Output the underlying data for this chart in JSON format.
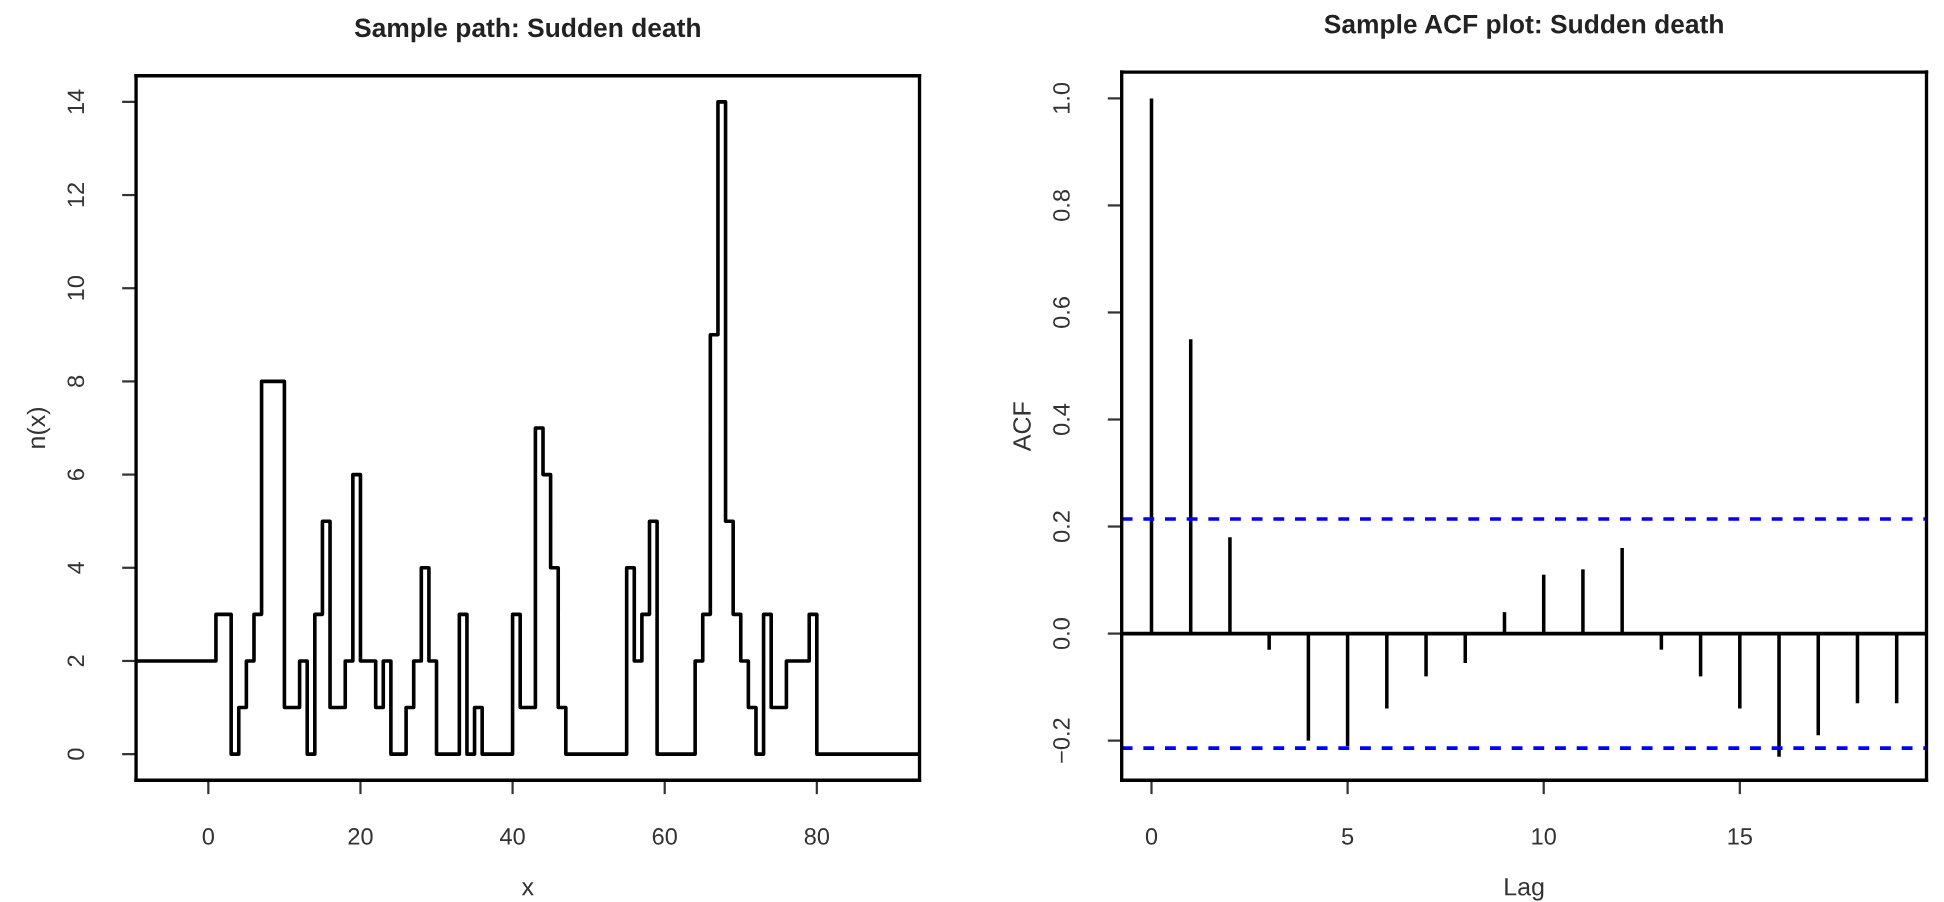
{
  "chart_data": [
    {
      "type": "step",
      "title": "Sample path: Sudden death",
      "xlabel": "x",
      "ylabel": "n(x)",
      "x": [
        -9.5,
        1,
        2,
        3,
        4,
        5,
        6,
        7,
        8,
        9,
        10,
        11,
        12,
        13,
        14,
        15,
        16,
        17,
        18,
        19,
        20,
        21,
        22,
        23,
        24,
        25,
        26,
        27,
        28,
        29,
        30,
        31,
        32,
        33,
        34,
        35,
        36,
        37,
        38,
        39,
        40,
        41,
        42,
        43,
        44,
        45,
        46,
        47,
        48,
        49,
        50,
        51,
        52,
        53,
        54,
        55,
        56,
        57,
        58,
        59,
        60,
        61,
        62,
        63,
        64,
        65,
        66,
        67,
        68,
        69,
        70,
        71,
        72,
        73,
        74,
        75,
        76,
        77,
        78,
        79,
        80,
        93.5
      ],
      "series": [
        {
          "color": "#000000",
          "values": [
            2,
            3,
            3,
            0,
            1,
            2,
            3,
            8,
            8,
            8,
            1,
            1,
            2,
            0,
            3,
            5,
            1,
            1,
            2,
            6,
            2,
            2,
            1,
            2,
            0,
            0,
            1,
            2,
            4,
            2,
            0,
            0,
            0,
            3,
            0,
            1,
            0,
            0,
            0,
            0,
            3,
            1,
            1,
            7,
            6,
            4,
            1,
            0,
            0,
            0,
            0,
            0,
            0,
            0,
            0,
            4,
            2,
            3,
            5,
            0,
            0,
            0,
            0,
            0,
            2,
            3,
            9,
            14,
            5,
            3,
            2,
            1,
            0,
            3,
            1,
            1,
            2,
            2,
            2,
            3,
            0,
            0
          ]
        }
      ],
      "xlim": [
        -9.5,
        93.5
      ],
      "ylim": [
        -0.56,
        14.56
      ],
      "xticks": [
        0,
        20,
        40,
        60,
        80
      ],
      "yticks": [
        0,
        2,
        4,
        6,
        8,
        10,
        12,
        14
      ],
      "grid": false,
      "marker": "none",
      "line_style": "solid"
    },
    {
      "type": "bar",
      "title": "Sample ACF plot: Sudden death",
      "xlabel": "Lag",
      "ylabel": "ACF",
      "x": [
        0,
        1,
        2,
        3,
        4,
        5,
        6,
        7,
        8,
        9,
        10,
        11,
        12,
        13,
        14,
        15,
        16,
        17,
        18,
        19
      ],
      "series": [
        {
          "color": "#000000",
          "values": [
            1.0,
            0.55,
            0.18,
            -0.03,
            -0.2,
            -0.21,
            -0.14,
            -0.08,
            -0.055,
            0.04,
            0.11,
            0.12,
            0.16,
            -0.03,
            -0.08,
            -0.14,
            -0.23,
            -0.19,
            -0.13,
            -0.13
          ]
        }
      ],
      "xlim": [
        -0.76,
        19.76
      ],
      "ylim": [
        -0.274,
        1.049
      ],
      "xticks": [
        0,
        5,
        10,
        15
      ],
      "yticks": [
        {
          "value": -0.2,
          "label": "−0.2"
        },
        {
          "value": 0,
          "label": "0.0"
        },
        0.2,
        0.4,
        0.6,
        0.8,
        {
          "value": 1,
          "label": "1.0"
        }
      ],
      "ref_lines": [
        {
          "axis": "y",
          "value": 0,
          "color": "#000000",
          "line_style": "solid"
        },
        {
          "axis": "y",
          "value": 0.214,
          "color": "#0000ff",
          "line_style": "dashed"
        },
        {
          "axis": "y",
          "value": -0.214,
          "color": "#0000ff",
          "line_style": "dashed"
        }
      ],
      "grid": false,
      "marker": "none"
    }
  ]
}
